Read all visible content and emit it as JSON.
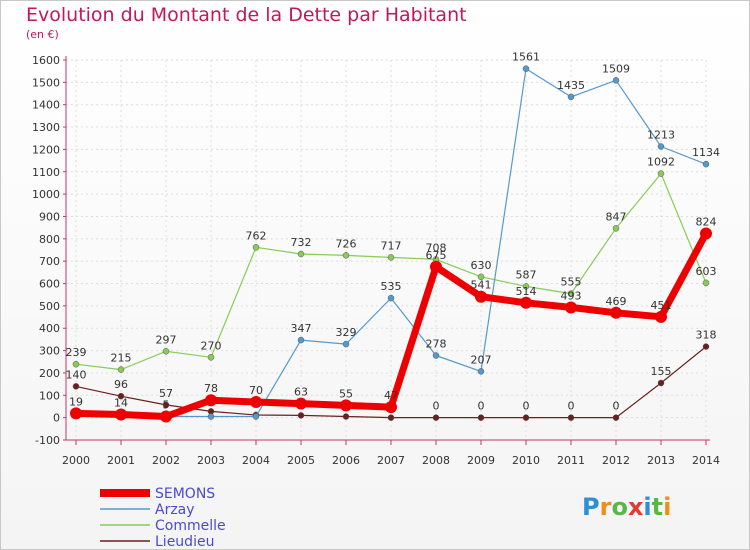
{
  "title": "Evolution du Montant de la Dette par Habitant",
  "subtitle": "(en €)",
  "logo": "Proxiti",
  "chart_data": {
    "type": "line",
    "title": "Evolution du Montant de la Dette par Habitant",
    "subtitle": "(en €)",
    "xlabel": "",
    "ylabel": "",
    "x": [
      2000,
      2001,
      2002,
      2003,
      2004,
      2005,
      2006,
      2007,
      2008,
      2009,
      2010,
      2011,
      2012,
      2013,
      2014
    ],
    "ylim": [
      -100,
      1600
    ],
    "yticks": [
      -100,
      0,
      100,
      200,
      300,
      400,
      500,
      600,
      700,
      800,
      900,
      1000,
      1100,
      1200,
      1300,
      1400,
      1500,
      1600
    ],
    "grid": true,
    "legend": "bottom-left",
    "series": [
      {
        "name": "Lieudieu",
        "color": "#6b1f1f",
        "values": [
          140,
          96,
          57,
          28,
          12,
          10,
          5,
          0,
          0,
          0,
          0,
          0,
          0,
          155,
          318
        ],
        "labels": [
          "140",
          "96",
          "57",
          "",
          "",
          "",
          "",
          "",
          "0",
          "0",
          "0",
          "0",
          "0",
          "155",
          "318"
        ]
      },
      {
        "name": "Commelle",
        "color": "#88cc55",
        "values": [
          239,
          215,
          297,
          270,
          762,
          732,
          726,
          717,
          708,
          630,
          587,
          555,
          847,
          1092,
          603
        ],
        "labels": [
          "239",
          "215",
          "297",
          "270",
          "762",
          "732",
          "726",
          "717",
          "708",
          "630",
          "587",
          "555",
          "847",
          "1092",
          "603"
        ]
      },
      {
        "name": "Arzay",
        "color": "#5599cc",
        "values": [
          30,
          15,
          5,
          5,
          5,
          347,
          329,
          535,
          278,
          207,
          1561,
          1435,
          1509,
          1213,
          1134
        ],
        "labels": [
          "",
          "",
          "",
          "",
          "",
          "347",
          "329",
          "535",
          "278",
          "207",
          "1561",
          "1435",
          "1509",
          "1213",
          "1134"
        ]
      },
      {
        "name": "SEMONS",
        "color": "#ee0000",
        "values": [
          19,
          14,
          5,
          78,
          70,
          63,
          55,
          47,
          675,
          541,
          514,
          493,
          469,
          451,
          824
        ],
        "labels": [
          "19",
          "14",
          "5",
          "78",
          "70",
          "63",
          "55",
          "47",
          "675",
          "541",
          "514",
          "493",
          "469",
          "451",
          "824"
        ]
      }
    ],
    "legend_entries": [
      "SEMONS",
      "Arzay",
      "Commelle",
      "Lieudieu"
    ]
  }
}
